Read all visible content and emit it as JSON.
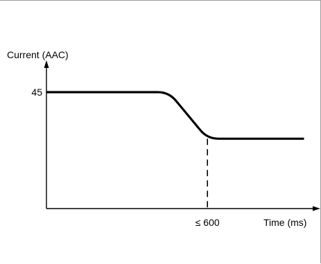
{
  "chart_data": {
    "type": "line",
    "ylabel": "Current (AAC)",
    "xlabel": "Time (ms)",
    "y_ticks": [
      {
        "value": 45,
        "label": "45"
      }
    ],
    "x_ticks": [
      {
        "value": 600,
        "label": "≤ 600"
      }
    ],
    "grid": false,
    "legend": "none",
    "xlim": [
      0,
      1000
    ],
    "ylim": [
      0,
      60
    ],
    "series": [
      {
        "points": [
          {
            "x": 0,
            "y": 45
          },
          {
            "x": 456,
            "y": 45
          },
          {
            "x": 600,
            "y": 27
          },
          {
            "x": 960,
            "y": 27
          }
        ]
      }
    ],
    "markers": [
      {
        "type": "vertical-dashed",
        "x": 600,
        "from_y": 27,
        "to_y": 0
      }
    ],
    "colors": {
      "line": "#000000",
      "axis": "#000000",
      "frame": "#9a9a9a"
    }
  }
}
